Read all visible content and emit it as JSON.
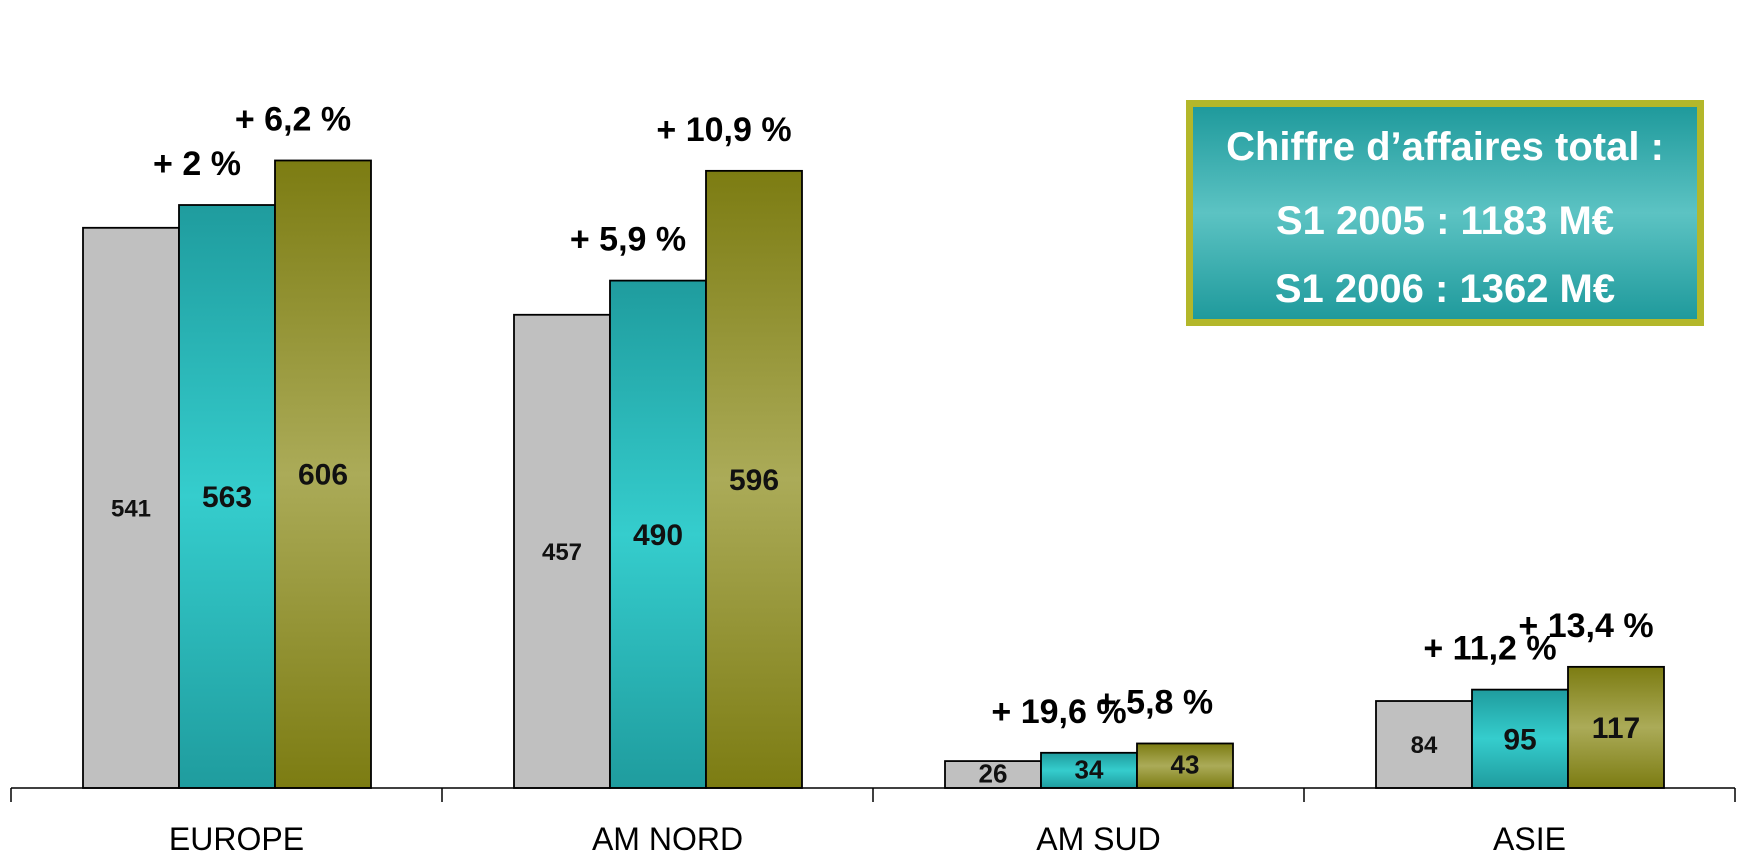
{
  "chart_data": {
    "type": "bar",
    "categories": [
      "EUROPE",
      "AM NORD",
      "AM SUD",
      "ASIE"
    ],
    "series": [
      {
        "values": [
          541,
          457,
          26,
          84
        ],
        "color": "#c0c0c0"
      },
      {
        "values": [
          563,
          490,
          34,
          95
        ],
        "color": "#2fc4c4"
      },
      {
        "values": [
          606,
          596,
          43,
          117
        ],
        "color": "#a3a34a"
      }
    ],
    "growth_labels": [
      [
        "+ 2 %",
        "+ 6,2 %"
      ],
      [
        "+ 5,9 %",
        "+ 10,9 %"
      ],
      [
        "+ 19,6 %",
        "+  5,8 %"
      ],
      [
        "+ 11,2 %",
        "+ 13,4 %"
      ]
    ],
    "ylim": [
      0,
      700
    ],
    "grid": false,
    "title": "",
    "xlabel": "",
    "ylabel": ""
  },
  "summary_box": {
    "title": "Chiffre d’affaires total :",
    "line1_label": "S1 2005 : ",
    "line1_value": "1183 M€",
    "line2_label": "S1 2006 : ",
    "line2_value": "1362 M€",
    "border_color": "#b3b72a"
  }
}
